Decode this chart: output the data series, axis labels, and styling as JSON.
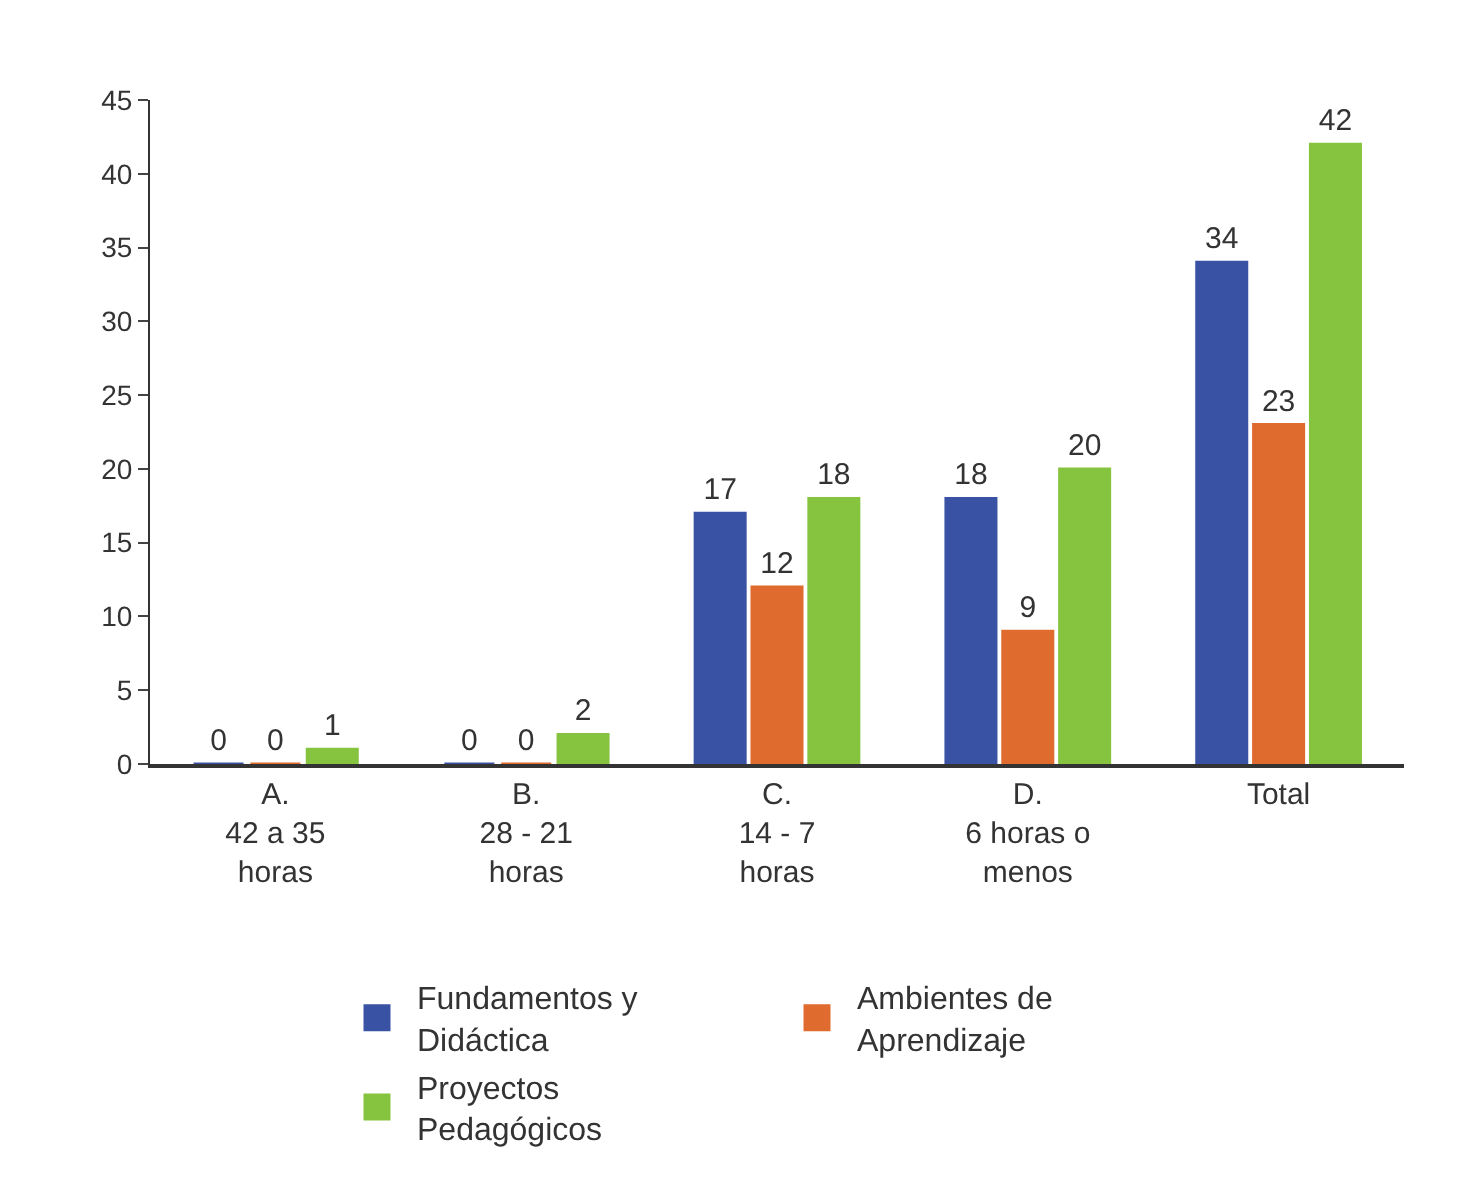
{
  "chart_data": {
    "type": "bar",
    "categories": [
      "A.\n42 a 35\nhoras",
      "B.\n28 - 21\nhoras",
      "C.\n14 - 7\nhoras",
      "D.\n6 horas o\nmenos",
      "Total"
    ],
    "series": [
      {
        "name": "Fundamentos y\nDidáctica",
        "color": "#3a52a4",
        "values": [
          0,
          0,
          17,
          18,
          34
        ]
      },
      {
        "name": "Ambientes de\nAprendizaje",
        "color": "#e06b2e",
        "values": [
          0,
          0,
          12,
          9,
          23
        ]
      },
      {
        "name": "Proyectos\nPedagógicos",
        "color": "#86c440",
        "values": [
          1,
          2,
          18,
          20,
          42
        ]
      }
    ],
    "ylim": [
      0,
      45
    ],
    "yticks": [
      0,
      5,
      10,
      15,
      20,
      25,
      30,
      35,
      40,
      45
    ],
    "data_labels": true,
    "legend": "bottom"
  }
}
